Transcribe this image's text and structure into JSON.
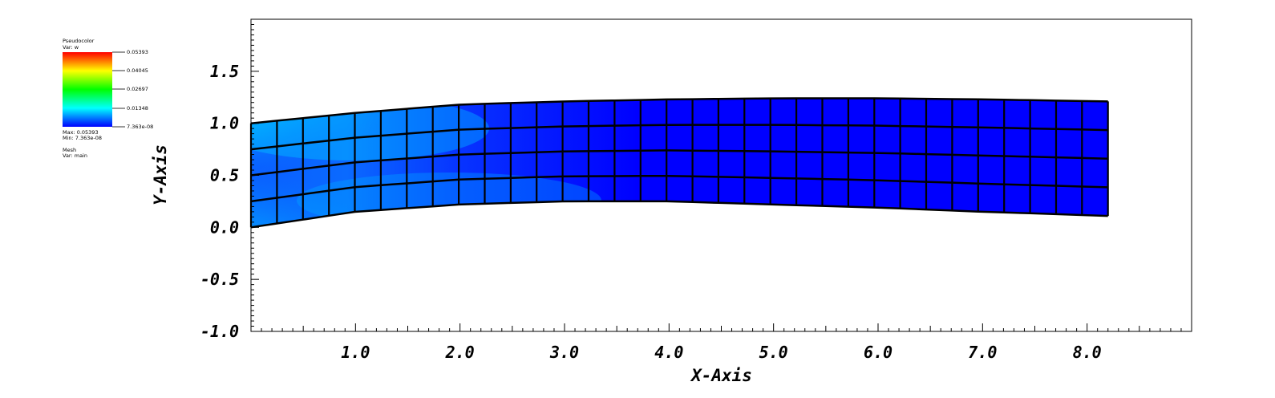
{
  "legend": {
    "plot_type": "Pseudocolor",
    "var_label": "Var: w",
    "colorbar_ticks": [
      "0.05393",
      "0.04045",
      "0.02697",
      "0.01348",
      "7.363e-08"
    ],
    "max_label": "Max: 0.05393",
    "min_label": "Min: 7.363e-08",
    "mesh_label": "Mesh",
    "mesh_var_label": "Var: main",
    "colormap": [
      "#0000ff",
      "#00ffff",
      "#00ff00",
      "#ffff00",
      "#ff0000"
    ]
  },
  "chart_data": {
    "type": "heatmap",
    "title": "",
    "xlabel": "X-Axis",
    "ylabel": "Y-Axis",
    "xlim": [
      0,
      9.0
    ],
    "ylim": [
      -1.0,
      2.0
    ],
    "x_ticks": [
      "1.0",
      "2.0",
      "3.0",
      "4.0",
      "5.0",
      "6.0",
      "7.0",
      "8.0"
    ],
    "y_ticks": [
      "-1.0",
      "-0.5",
      "0.0",
      "0.5",
      "1.0",
      "1.5"
    ],
    "variable": "w",
    "value_range": [
      7.363e-08,
      0.05393
    ],
    "mesh": {
      "columns": 33,
      "rows": 4,
      "x_end": 8.2,
      "bottom_edge": [
        [
          0.0,
          0.0
        ],
        [
          1.0,
          0.15
        ],
        [
          2.0,
          0.22
        ],
        [
          3.0,
          0.25
        ],
        [
          4.0,
          0.25
        ],
        [
          5.0,
          0.22
        ],
        [
          6.0,
          0.19
        ],
        [
          7.0,
          0.15
        ],
        [
          8.2,
          0.11
        ]
      ],
      "top_edge": [
        [
          0.0,
          1.0
        ],
        [
          1.0,
          1.1
        ],
        [
          2.0,
          1.18
        ],
        [
          3.0,
          1.21
        ],
        [
          4.0,
          1.23
        ],
        [
          5.0,
          1.24
        ],
        [
          6.0,
          1.24
        ],
        [
          7.0,
          1.23
        ],
        [
          8.2,
          1.21
        ]
      ]
    },
    "field_samples": [
      {
        "x": 0.05,
        "y": 0.95,
        "w": 0.05
      },
      {
        "x": 0.05,
        "y": 0.15,
        "w": 0.03
      },
      {
        "x": 0.8,
        "y": 0.2,
        "w": 0.025
      },
      {
        "x": 1.0,
        "y": 1.0,
        "w": 0.018
      },
      {
        "x": 2.0,
        "y": 0.5,
        "w": 0.008
      },
      {
        "x": 4.0,
        "y": 0.7,
        "w": 0.002
      },
      {
        "x": 8.0,
        "y": 0.6,
        "w": 0.0
      }
    ]
  }
}
